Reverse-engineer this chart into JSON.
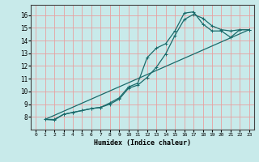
{
  "xlabel": "Humidex (Indice chaleur)",
  "bg_color": "#c8eaea",
  "grid_color": "#e8a0a0",
  "line_color": "#1a6b6b",
  "xlim": [
    -0.5,
    23.5
  ],
  "ylim": [
    7.0,
    16.8
  ],
  "xticks": [
    0,
    1,
    2,
    3,
    4,
    5,
    6,
    7,
    8,
    9,
    10,
    11,
    12,
    13,
    14,
    15,
    16,
    17,
    18,
    19,
    20,
    21,
    22,
    23
  ],
  "yticks": [
    8,
    9,
    10,
    11,
    12,
    13,
    14,
    15,
    16
  ],
  "ytick_labels": [
    "8",
    "9",
    "10",
    "11",
    "12",
    "13",
    "14",
    "15",
    "16"
  ],
  "line1_x": [
    1,
    2,
    3,
    4,
    5,
    6,
    7,
    8,
    9,
    10,
    11,
    12,
    13,
    14,
    15,
    16,
    17,
    18,
    19,
    20,
    21,
    22,
    23
  ],
  "line1_y": [
    7.8,
    7.8,
    8.2,
    8.35,
    8.5,
    8.65,
    8.75,
    9.1,
    9.5,
    10.35,
    10.65,
    12.65,
    13.4,
    13.75,
    14.75,
    16.15,
    16.25,
    15.3,
    14.75,
    14.75,
    14.25,
    14.85,
    14.85
  ],
  "line2_x": [
    1,
    2,
    3,
    4,
    5,
    6,
    7,
    8,
    9,
    10,
    11,
    12,
    13,
    14,
    15,
    16,
    17,
    18,
    19,
    20,
    21,
    22,
    23
  ],
  "line2_y": [
    7.8,
    7.75,
    8.2,
    8.35,
    8.5,
    8.65,
    8.75,
    9.0,
    9.4,
    10.25,
    10.5,
    11.1,
    11.9,
    12.95,
    14.4,
    15.65,
    16.05,
    15.75,
    15.15,
    14.85,
    14.75,
    14.85,
    14.85
  ],
  "line3_x": [
    1,
    23
  ],
  "line3_y": [
    7.8,
    14.85
  ]
}
